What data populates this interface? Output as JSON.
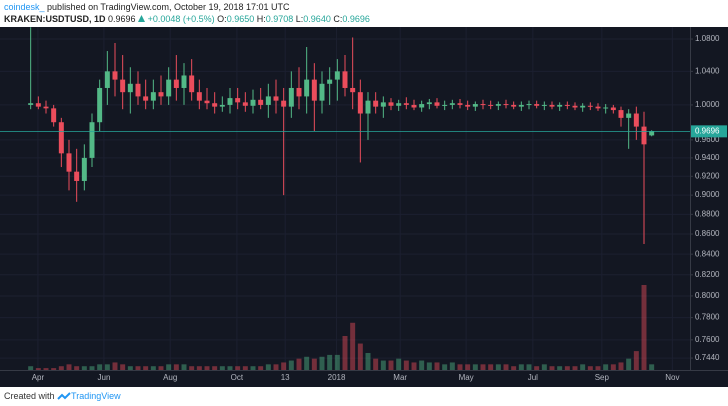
{
  "header": {
    "author": "coindesk_",
    "published": "published on TradingView.com, October 19, 2018 17:01 UTC",
    "symbol": "KRAKEN:USDTUSD, 1D",
    "last": "0.9696",
    "change": "+0.0048 (+0.5%)",
    "open_label": "O:",
    "open": "0.9650",
    "high_label": "H:",
    "high": "0.9708",
    "low_label": "L:",
    "low": "0.9640",
    "close_label": "C:",
    "close": "0.9696"
  },
  "footer": {
    "created": "Created with",
    "brand": "TradingView"
  },
  "chart_data": {
    "type": "candlestick",
    "log_scale": true,
    "grid": true,
    "up_color": "#53b987",
    "down_color": "#eb4d5c",
    "open": [
      1.0,
      1.002,
      0.998,
      0.996,
      0.98,
      0.945,
      0.925,
      0.915,
      0.94,
      0.98,
      1.02,
      1.04,
      1.03,
      1.015,
      1.025,
      1.01,
      1.005,
      1.015,
      1.01,
      1.03,
      1.02,
      1.035,
      1.015,
      1.005,
      1.002,
      0.998,
      1.0,
      1.008,
      1.003,
      0.999,
      1.006,
      1.0,
      1.01,
      1.005,
      0.998,
      1.02,
      1.01,
      1.03,
      1.005,
      1.025,
      1.03,
      1.04,
      1.02,
      1.015,
      0.99,
      1.005,
      0.998,
      1.003,
      0.999,
      1.002,
      1.0,
      0.997,
      1.001,
      1.003,
      0.999,
      1.0,
      1.002,
      1.0,
      0.998,
      1.001,
      1.0,
      0.999,
      1.001,
      1.0,
      0.998,
      1.0,
      1.001,
      0.999,
      1.0,
      0.998,
      1.0,
      0.999,
      0.997,
      0.999,
      0.998,
      0.996,
      0.997,
      0.994,
      0.985,
      0.99,
      0.975,
      0.965
    ],
    "high": [
      1.095,
      1.01,
      1.005,
      1.0,
      0.985,
      0.96,
      0.95,
      0.955,
      0.99,
      1.03,
      1.065,
      1.075,
      1.06,
      1.045,
      1.04,
      1.03,
      1.03,
      1.035,
      1.045,
      1.06,
      1.05,
      1.055,
      1.03,
      1.02,
      1.015,
      1.01,
      1.02,
      1.02,
      1.015,
      1.018,
      1.02,
      1.025,
      1.03,
      1.02,
      1.04,
      1.045,
      1.07,
      1.05,
      1.04,
      1.045,
      1.055,
      1.06,
      1.082,
      1.03,
      1.015,
      1.015,
      1.01,
      1.008,
      1.006,
      1.009,
      1.006,
      1.005,
      1.007,
      1.008,
      1.005,
      1.006,
      1.007,
      1.005,
      1.004,
      1.006,
      1.005,
      1.004,
      1.006,
      1.004,
      1.004,
      1.005,
      1.005,
      1.004,
      1.004,
      1.003,
      1.004,
      1.003,
      1.002,
      1.003,
      1.002,
      1.001,
      1.0,
      0.998,
      0.995,
      0.998,
      0.992,
      0.9708
    ],
    "low": [
      0.995,
      0.995,
      0.99,
      0.975,
      0.93,
      0.905,
      0.893,
      0.905,
      0.93,
      0.97,
      1.0,
      1.01,
      0.995,
      0.99,
      1.0,
      0.995,
      0.995,
      1.0,
      1.0,
      1.005,
      1.0,
      1.005,
      0.995,
      0.995,
      0.99,
      0.992,
      0.99,
      0.995,
      0.992,
      0.99,
      0.995,
      0.985,
      0.99,
      0.9,
      0.985,
      0.995,
      0.99,
      0.97,
      0.99,
      1.0,
      1.005,
      1.01,
      0.995,
      0.935,
      0.96,
      0.99,
      0.985,
      0.994,
      0.993,
      0.995,
      0.994,
      0.992,
      0.995,
      0.996,
      0.994,
      0.995,
      0.996,
      0.994,
      0.993,
      0.995,
      0.995,
      0.994,
      0.996,
      0.995,
      0.993,
      0.995,
      0.996,
      0.994,
      0.995,
      0.993,
      0.995,
      0.994,
      0.992,
      0.994,
      0.993,
      0.99,
      0.99,
      0.975,
      0.95,
      0.96,
      0.85,
      0.964
    ],
    "close": [
      1.002,
      0.998,
      0.996,
      0.98,
      0.945,
      0.925,
      0.915,
      0.94,
      0.98,
      1.02,
      1.04,
      1.03,
      1.015,
      1.025,
      1.01,
      1.005,
      1.015,
      1.01,
      1.03,
      1.02,
      1.035,
      1.015,
      1.005,
      1.002,
      0.998,
      1.0,
      1.008,
      1.003,
      0.999,
      1.006,
      1.0,
      1.01,
      1.005,
      0.998,
      1.02,
      1.01,
      1.03,
      1.005,
      1.025,
      1.03,
      1.04,
      1.02,
      1.015,
      0.99,
      1.005,
      0.998,
      1.003,
      0.999,
      1.002,
      1.0,
      0.997,
      1.001,
      1.003,
      0.999,
      1.0,
      1.002,
      1.0,
      0.998,
      1.001,
      1.0,
      0.999,
      1.001,
      1.0,
      0.998,
      1.0,
      1.001,
      0.999,
      1.0,
      0.998,
      1.0,
      0.999,
      0.997,
      0.999,
      0.998,
      0.996,
      0.997,
      0.994,
      0.985,
      0.99,
      0.975,
      0.955,
      0.9696
    ],
    "volume": [
      2,
      1,
      1,
      1,
      2,
      3,
      2,
      2,
      2,
      3,
      3,
      4,
      3,
      2,
      2,
      2,
      2,
      2,
      3,
      3,
      3,
      2,
      2,
      2,
      2,
      2,
      2,
      2,
      2,
      2,
      2,
      3,
      3,
      4,
      5,
      6,
      7,
      6,
      7,
      8,
      8,
      18,
      25,
      14,
      9,
      6,
      5,
      5,
      6,
      5,
      4,
      5,
      4,
      4,
      3,
      4,
      3,
      3,
      3,
      3,
      3,
      3,
      3,
      2,
      3,
      3,
      2,
      3,
      2,
      2,
      2,
      2,
      3,
      2,
      2,
      3,
      3,
      4,
      6,
      10,
      45,
      3
    ],
    "xlim": [
      -4,
      86
    ],
    "xticks": [
      {
        "value": 0.95,
        "label": "Apr"
      },
      {
        "value": 9.56,
        "label": "Jun"
      },
      {
        "value": 18.2,
        "label": "Aug"
      },
      {
        "value": 26.9,
        "label": "Oct"
      },
      {
        "value": 33.2,
        "label": "13"
      },
      {
        "value": 39.9,
        "label": "2018"
      },
      {
        "value": 48.2,
        "label": "Mar"
      },
      {
        "value": 56.8,
        "label": "May"
      },
      {
        "value": 65.5,
        "label": "Jul"
      },
      {
        "value": 74.5,
        "label": "Sep"
      },
      {
        "value": 83.7,
        "label": "Nov"
      }
    ],
    "ylim": [
      0.7337,
      1.0953
    ],
    "yticks": [
      {
        "value": 1.08,
        "label": "1.0800"
      },
      {
        "value": 1.04,
        "label": "1.0400"
      },
      {
        "value": 1.0,
        "label": "1.0000"
      },
      {
        "value": 0.96,
        "label": "0.9600"
      },
      {
        "value": 0.94,
        "label": "0.9400"
      },
      {
        "value": 0.92,
        "label": "0.9200"
      },
      {
        "value": 0.9,
        "label": "0.9000"
      },
      {
        "value": 0.88,
        "label": "0.8800"
      },
      {
        "value": 0.86,
        "label": "0.8600"
      },
      {
        "value": 0.84,
        "label": "0.8400"
      },
      {
        "value": 0.82,
        "label": "0.8200"
      },
      {
        "value": 0.8,
        "label": "0.8000"
      },
      {
        "value": 0.78,
        "label": "0.7800"
      },
      {
        "value": 0.76,
        "label": "0.7600"
      },
      {
        "value": 0.744,
        "label": "0.7440"
      }
    ],
    "price_line": {
      "value": 0.9696,
      "label": "0.9696",
      "color": "#26a69a"
    }
  }
}
